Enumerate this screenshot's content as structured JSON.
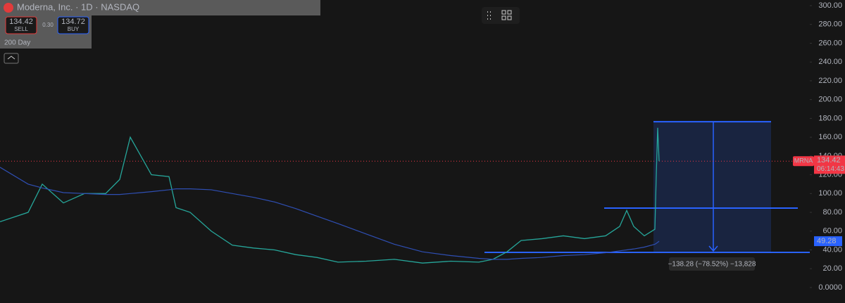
{
  "header": {
    "symbol": "Moderna, Inc. · 1D · NASDAQ",
    "sell_price": "134.42",
    "sell_label": "SELL",
    "spread": "0.30",
    "buy_price": "134.72",
    "buy_label": "BUY",
    "indicator": "200 Day"
  },
  "chart_data": {
    "type": "line",
    "x": [
      0,
      40,
      60,
      90,
      120,
      150,
      170,
      185,
      200,
      215,
      240,
      250,
      270,
      300,
      330,
      360,
      390,
      420,
      450,
      480,
      520,
      560,
      600,
      640,
      680,
      700,
      720,
      740,
      770,
      800,
      830,
      860,
      880,
      890,
      900,
      915,
      930,
      932,
      934,
      936
    ],
    "series": [
      {
        "name": "MRNA",
        "color": "#26a69a",
        "values": [
          70,
          80,
          110,
          90,
          100,
          100,
          115,
          160,
          140,
          120,
          118,
          85,
          80,
          60,
          45,
          42,
          40,
          35,
          32,
          27,
          28,
          30,
          26,
          28,
          27,
          30,
          38,
          50,
          52,
          55,
          52,
          55,
          65,
          82,
          65,
          55,
          62,
          120,
          170,
          134.42
        ]
      },
      {
        "name": "200 Day",
        "color": "#2f4fb4",
        "values": [
          128,
          110,
          106,
          101,
          100,
          99,
          99,
          100,
          101,
          102,
          104,
          105,
          105,
          104,
          100,
          96,
          91,
          84,
          76,
          68,
          57,
          46,
          38,
          34,
          31,
          30,
          30,
          31,
          32,
          34,
          35,
          37,
          39,
          40,
          41,
          43,
          46,
          47,
          48,
          49.28
        ]
      }
    ],
    "xlim": [
      0,
      1150
    ],
    "ylim": [
      -16.5,
      306
    ],
    "yticks": [
      {
        "value": 0,
        "label": "0.0000"
      },
      {
        "value": 20,
        "label": "20.00"
      },
      {
        "value": 40,
        "label": "40.00"
      },
      {
        "value": 60,
        "label": "60.00"
      },
      {
        "value": 80,
        "label": "80.00"
      },
      {
        "value": 100,
        "label": "100.00"
      },
      {
        "value": 120,
        "label": "120.00"
      },
      {
        "value": 140,
        "label": "140.00"
      },
      {
        "value": 160,
        "label": "160.00"
      },
      {
        "value": 180,
        "label": "180.00"
      },
      {
        "value": 200,
        "label": "200.00"
      },
      {
        "value": 220,
        "label": "220.00"
      },
      {
        "value": 240,
        "label": "240.00"
      },
      {
        "value": 260,
        "label": "260.00"
      },
      {
        "value": 280,
        "label": "280.00"
      },
      {
        "value": 300,
        "label": "300.00"
      }
    ],
    "levels": [
      176.5,
      84.5,
      37.4
    ],
    "price_tag": {
      "symbol": "MRNA",
      "value": 134.42,
      "label": "134.42",
      "countdown": "06:14:43"
    },
    "ma_tag": {
      "value": 49.28,
      "label": "49.28"
    },
    "measure_label": "−138.28 (−78.52%) −13,828"
  }
}
